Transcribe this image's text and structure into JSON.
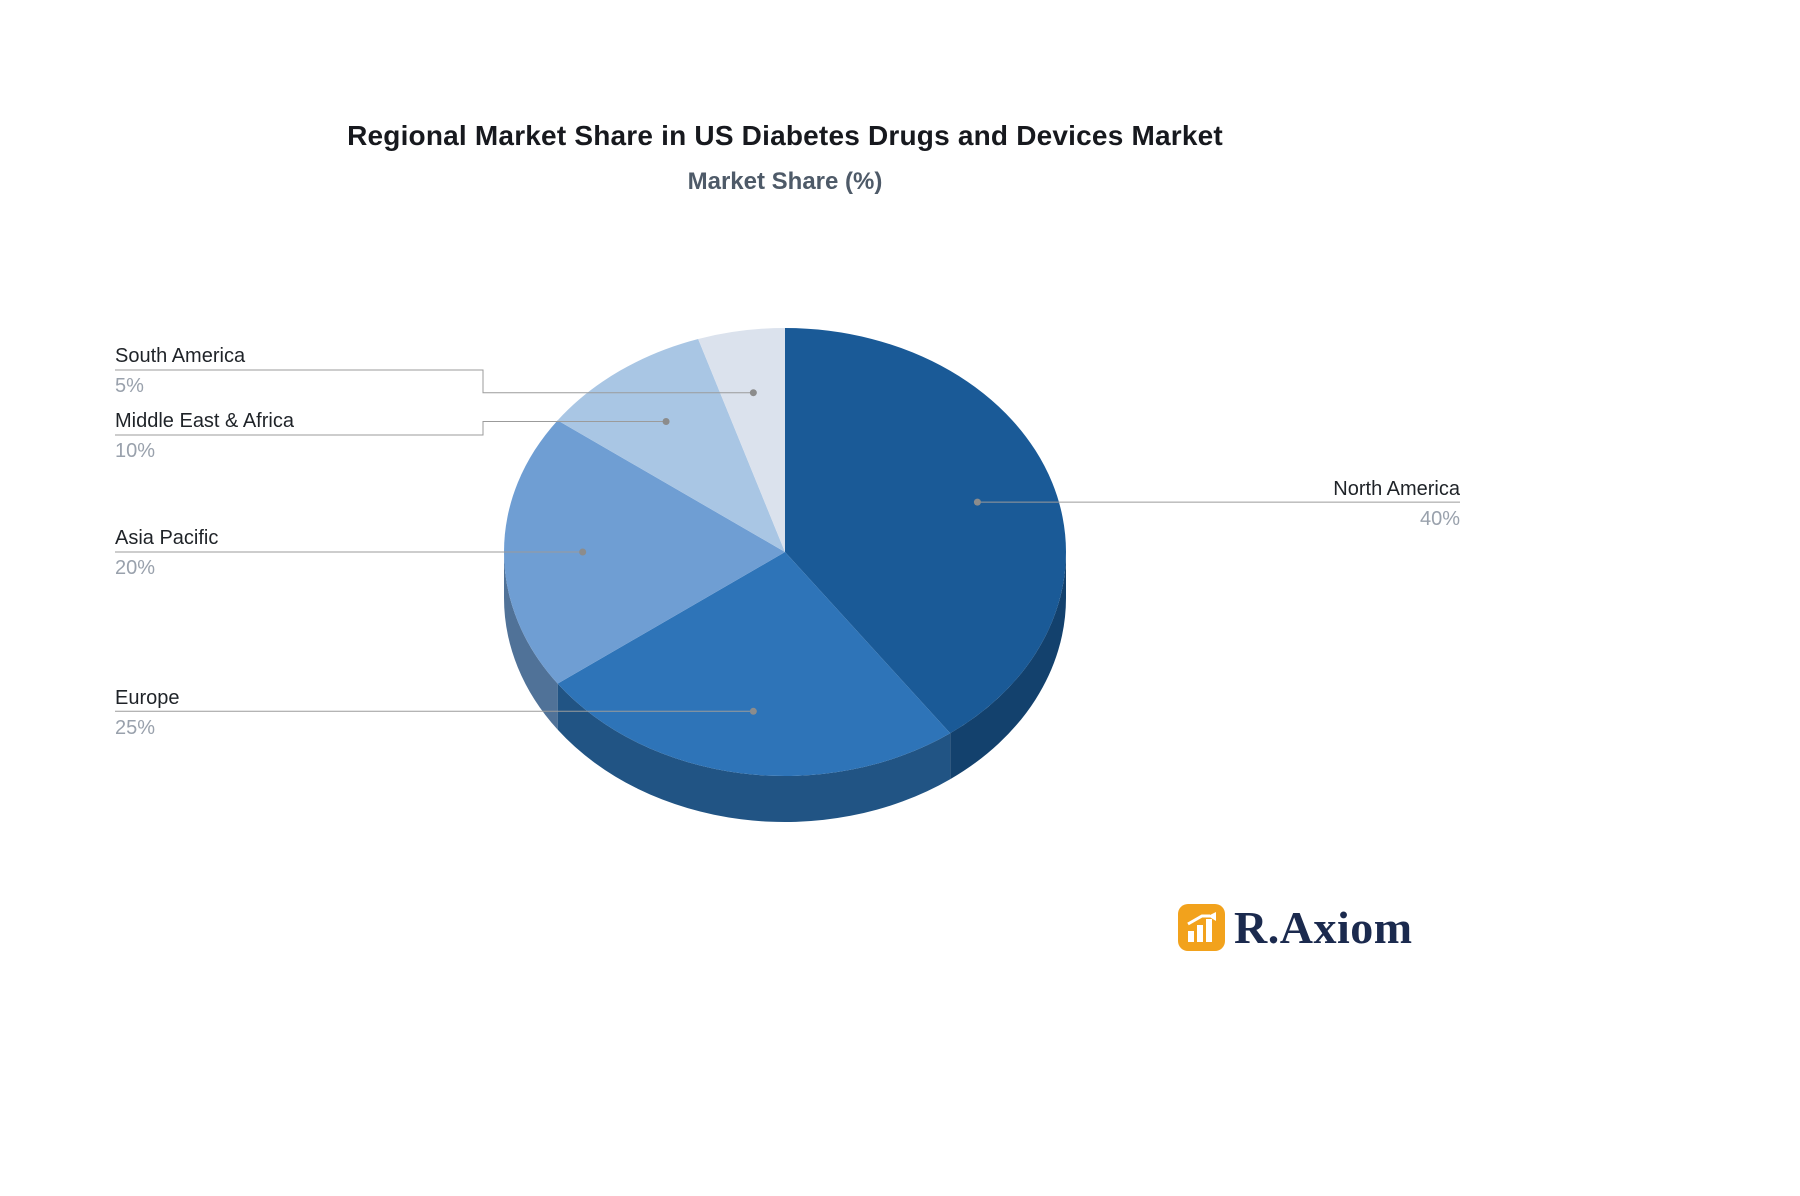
{
  "title": "Regional Market Share in US Diabetes Drugs and Devices Market",
  "subtitle": "Market Share (%)",
  "logo": {
    "text": "R.Axiom",
    "icon": "bar-chart-icon",
    "icon_color": "#f2a21c",
    "text_color": "#1b2a4e"
  },
  "chart_data": {
    "type": "pie",
    "title": "Regional Market Share in US Diabetes Drugs and Devices Market",
    "subtitle": "Market Share (%)",
    "unit": "%",
    "style": "3d",
    "start_angle_deg": 0,
    "direction": "clockwise",
    "legend": "none",
    "slices": [
      {
        "label": "North America",
        "value": 40,
        "value_text": "40%",
        "color": "#1a5a97"
      },
      {
        "label": "Europe",
        "value": 25,
        "value_text": "25%",
        "color": "#2e74b8"
      },
      {
        "label": "Asia Pacific",
        "value": 20,
        "value_text": "20%",
        "color": "#6f9ed3"
      },
      {
        "label": "Middle East & Africa",
        "value": 10,
        "value_text": "10%",
        "color": "#a9c6e4"
      },
      {
        "label": "South America",
        "value": 5,
        "value_text": "5%",
        "color": "#dbe2ed"
      }
    ],
    "label_text_color": "#1f2328",
    "value_text_color": "#99a1ac",
    "leader_line_color": "#9b9b9b"
  }
}
